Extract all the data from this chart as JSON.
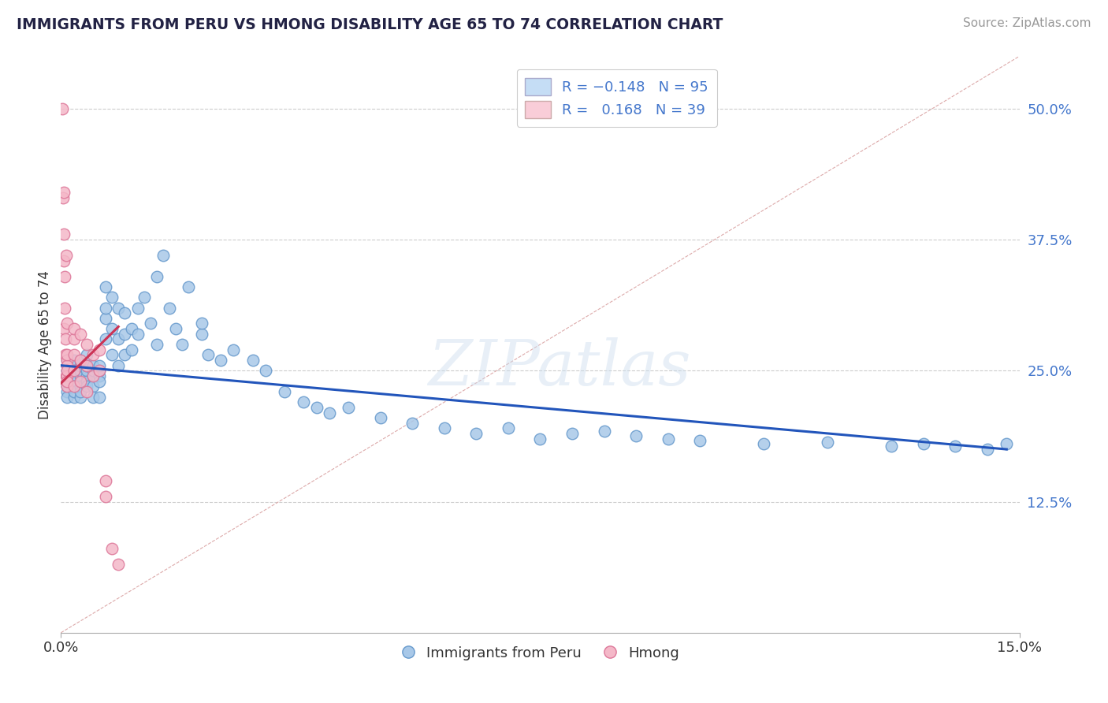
{
  "title": "IMMIGRANTS FROM PERU VS HMONG DISABILITY AGE 65 TO 74 CORRELATION CHART",
  "source_text": "Source: ZipAtlas.com",
  "ylabel": "Disability Age 65 to 74",
  "xmin": 0.0,
  "xmax": 0.15,
  "ymin": 0.0,
  "ymax": 0.55,
  "series1_name": "Immigrants from Peru",
  "series1_fill": "#a8c8e8",
  "series1_edge": "#6699cc",
  "series2_name": "Hmong",
  "series2_fill": "#f4b8c8",
  "series2_edge": "#dd7799",
  "trendline1_color": "#2255bb",
  "trendline2_color": "#cc3355",
  "legend_fill1": "#c5ddf5",
  "legend_fill2": "#f9cdd8",
  "legend_text_color": "#4477cc",
  "watermark": "ZIPatlas",
  "background_color": "#ffffff",
  "grid_color": "#cccccc",
  "ytick_color": "#4477cc",
  "title_color": "#222244",
  "source_color": "#999999",
  "peru_x": [
    0.001,
    0.001,
    0.001,
    0.001,
    0.001,
    0.001,
    0.001,
    0.001,
    0.002,
    0.002,
    0.002,
    0.002,
    0.002,
    0.002,
    0.002,
    0.002,
    0.003,
    0.003,
    0.003,
    0.003,
    0.003,
    0.003,
    0.003,
    0.004,
    0.004,
    0.004,
    0.004,
    0.004,
    0.004,
    0.005,
    0.005,
    0.005,
    0.005,
    0.005,
    0.006,
    0.006,
    0.006,
    0.006,
    0.006,
    0.007,
    0.007,
    0.007,
    0.007,
    0.008,
    0.008,
    0.008,
    0.009,
    0.009,
    0.009,
    0.01,
    0.01,
    0.01,
    0.011,
    0.011,
    0.012,
    0.012,
    0.013,
    0.014,
    0.015,
    0.015,
    0.016,
    0.017,
    0.018,
    0.019,
    0.02,
    0.022,
    0.022,
    0.023,
    0.025,
    0.027,
    0.03,
    0.032,
    0.035,
    0.038,
    0.04,
    0.042,
    0.045,
    0.05,
    0.055,
    0.06,
    0.065,
    0.07,
    0.075,
    0.08,
    0.085,
    0.09,
    0.095,
    0.1,
    0.11,
    0.12,
    0.13,
    0.135,
    0.14,
    0.145,
    0.148
  ],
  "peru_y": [
    0.245,
    0.25,
    0.255,
    0.24,
    0.235,
    0.26,
    0.23,
    0.225,
    0.245,
    0.25,
    0.24,
    0.235,
    0.255,
    0.225,
    0.26,
    0.23,
    0.245,
    0.25,
    0.255,
    0.235,
    0.225,
    0.26,
    0.23,
    0.245,
    0.25,
    0.24,
    0.235,
    0.255,
    0.265,
    0.245,
    0.25,
    0.235,
    0.255,
    0.225,
    0.245,
    0.25,
    0.24,
    0.255,
    0.225,
    0.3,
    0.31,
    0.33,
    0.28,
    0.32,
    0.29,
    0.265,
    0.31,
    0.28,
    0.255,
    0.305,
    0.285,
    0.265,
    0.29,
    0.27,
    0.31,
    0.285,
    0.32,
    0.295,
    0.34,
    0.275,
    0.36,
    0.31,
    0.29,
    0.275,
    0.33,
    0.285,
    0.295,
    0.265,
    0.26,
    0.27,
    0.26,
    0.25,
    0.23,
    0.22,
    0.215,
    0.21,
    0.215,
    0.205,
    0.2,
    0.195,
    0.19,
    0.195,
    0.185,
    0.19,
    0.192,
    0.188,
    0.185,
    0.183,
    0.18,
    0.182,
    0.178,
    0.18,
    0.178,
    0.175,
    0.18
  ],
  "hmong_x": [
    0.0002,
    0.0003,
    0.0004,
    0.0005,
    0.0005,
    0.0005,
    0.0006,
    0.0006,
    0.0007,
    0.0007,
    0.0008,
    0.0008,
    0.0009,
    0.0009,
    0.001,
    0.001,
    0.001,
    0.001,
    0.001,
    0.001,
    0.002,
    0.002,
    0.002,
    0.002,
    0.002,
    0.003,
    0.003,
    0.003,
    0.004,
    0.004,
    0.004,
    0.005,
    0.005,
    0.006,
    0.006,
    0.007,
    0.007,
    0.008,
    0.009
  ],
  "hmong_y": [
    0.5,
    0.415,
    0.38,
    0.355,
    0.42,
    0.29,
    0.34,
    0.31,
    0.28,
    0.265,
    0.36,
    0.245,
    0.295,
    0.26,
    0.255,
    0.245,
    0.235,
    0.265,
    0.25,
    0.24,
    0.28,
    0.265,
    0.25,
    0.29,
    0.235,
    0.285,
    0.26,
    0.24,
    0.275,
    0.255,
    0.23,
    0.265,
    0.245,
    0.27,
    0.25,
    0.145,
    0.13,
    0.08,
    0.065
  ]
}
